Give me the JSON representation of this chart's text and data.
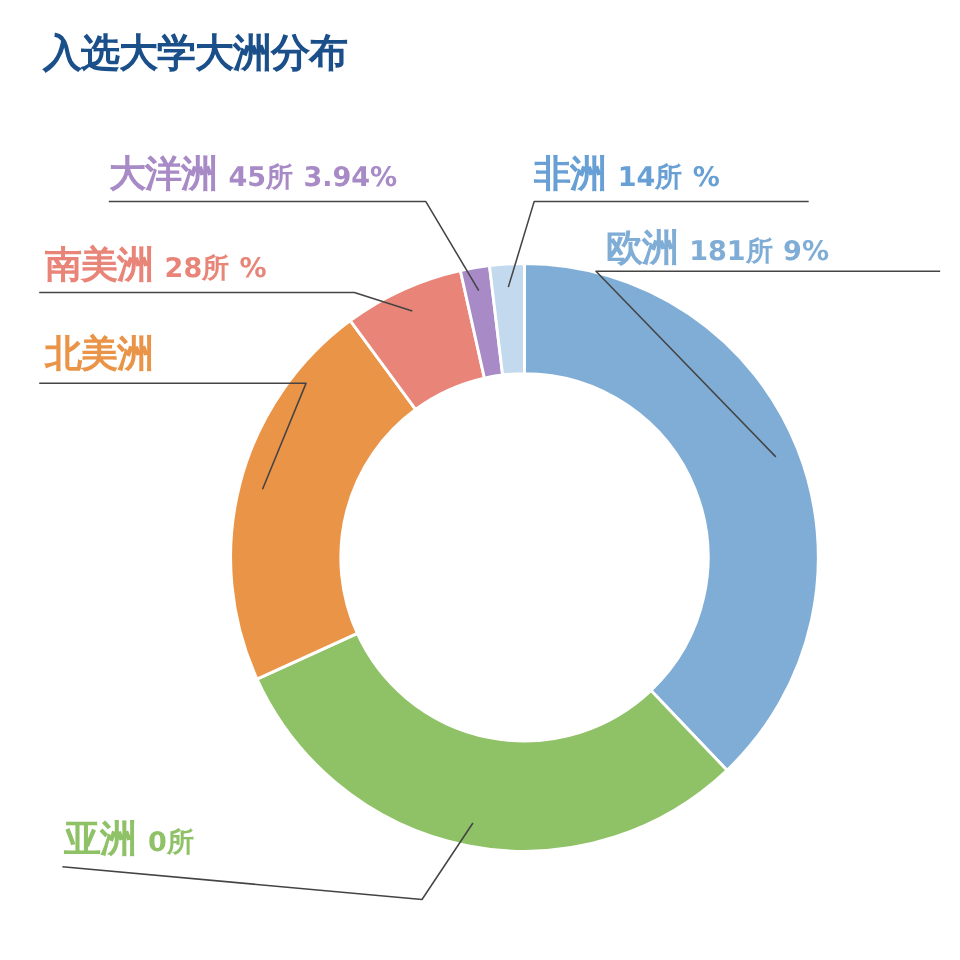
{
  "chart_data": {
    "type": "donut",
    "title": "入选大学大洲分布",
    "categories": [
      "欧洲",
      "亚洲",
      "北美洲",
      "南美洲",
      "大洋洲",
      "非洲"
    ],
    "values": [
      37.9,
      30.3,
      21.7,
      6.6,
      1.6,
      1.9
    ],
    "colors": [
      "#7fadd6",
      "#8fc166",
      "#ea9448",
      "#e98578",
      "#a88bc6",
      "#c3d9ee"
    ],
    "annotations": [
      {
        "text": "181所 9%",
        "x": "欧洲"
      },
      {
        "text": "0所",
        "x": "亚洲"
      },
      {
        "text": "28所 %",
        "x": "南美洲"
      },
      {
        "text": "45所 3.94%",
        "x": "大洋洲"
      },
      {
        "text": "14所 %",
        "x": "非洲"
      }
    ]
  }
}
